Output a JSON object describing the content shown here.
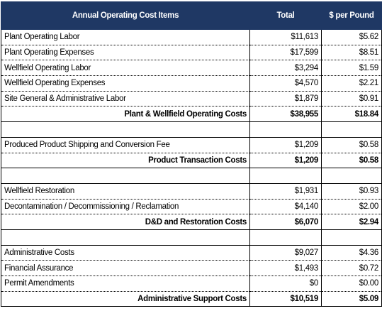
{
  "table": {
    "header": [
      "Annual Operating Cost Items",
      "Total",
      "$ per Pound"
    ],
    "sections": [
      {
        "items": [
          [
            "Plant Operating Labor",
            "$11,613",
            "$5.62"
          ],
          [
            "Plant Operating Expenses",
            "$17,599",
            "$8.51"
          ],
          [
            "Wellfield Operating Labor",
            "$3,294",
            "$1.59"
          ],
          [
            "Wellfield Operating Expenses",
            "$4,570",
            "$2.21"
          ],
          [
            "Site General & Administrative Labor",
            "$1,879",
            "$0.91"
          ]
        ],
        "subtotal": [
          "Plant & Wellfield Operating Costs",
          "$38,955",
          "$18.84"
        ]
      },
      {
        "items": [
          [
            "Produced Product Shipping and Conversion Fee",
            "$1,209",
            "$0.58"
          ]
        ],
        "subtotal": [
          "Product Transaction Costs",
          "$1,209",
          "$0.58"
        ]
      },
      {
        "items": [
          [
            "Wellfield Restoration",
            "$1,931",
            "$0.93"
          ],
          [
            "Decontamination / Decommissioning / Reclamation",
            "$4,140",
            "$2.00"
          ]
        ],
        "subtotal": [
          "D&D and Restoration Costs",
          "$6,070",
          "$2.94"
        ]
      },
      {
        "items": [
          [
            "Administrative Costs",
            "$9,027",
            "$4.36"
          ],
          [
            "Financial Assurance",
            "$1,493",
            "$0.72"
          ],
          [
            "Permit Amendments",
            "$0",
            "$0.00"
          ]
        ],
        "subtotal": [
          "Administrative Support Costs",
          "$10,519",
          "$5.09"
        ]
      }
    ]
  }
}
